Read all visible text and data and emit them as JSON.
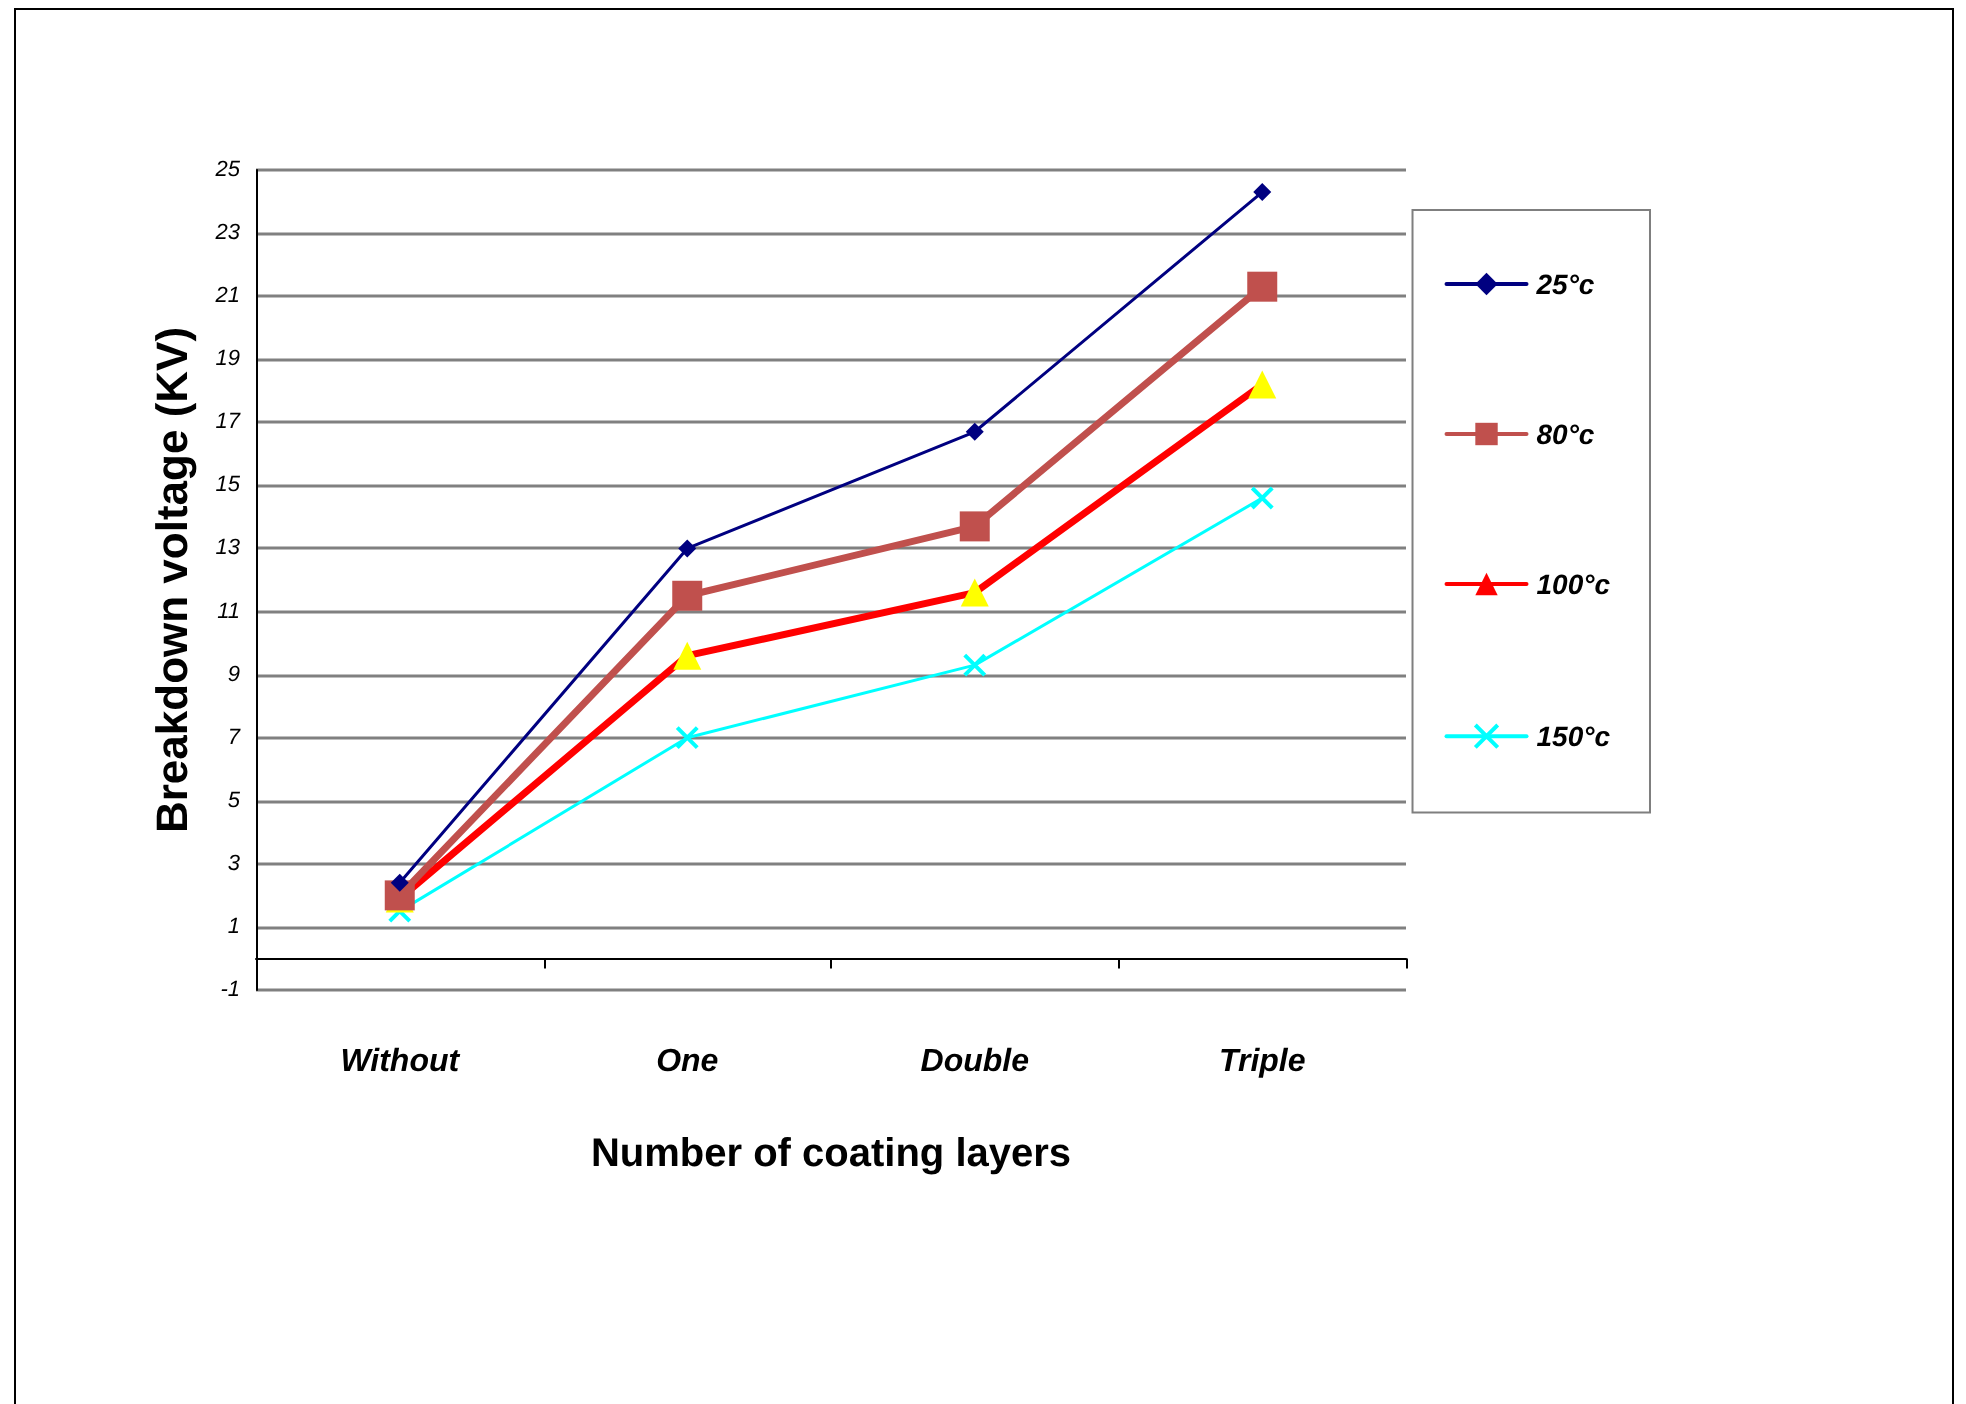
{
  "chart_data": {
    "type": "line",
    "xlabel": "Number of coating layers",
    "ylabel": "Breakdown voltage (KV)",
    "categories": [
      "Without",
      "One",
      "Double",
      "Triple"
    ],
    "series": [
      {
        "name": "25°c",
        "color": "#000080",
        "marker": "diamond",
        "values": [
          2.4,
          13,
          16.7,
          24.3
        ]
      },
      {
        "name": "80°c",
        "color": "#c0504d",
        "marker": "square",
        "values": [
          2.0,
          11.5,
          13.7,
          21.3
        ]
      },
      {
        "name": "100°c",
        "color": "#ff0000",
        "marker": "triangle",
        "colors": [
          "#ffff00",
          "#ffff00",
          "#ffff00",
          "#ffff00"
        ],
        "values": [
          1.9,
          9.6,
          11.6,
          18.2
        ]
      },
      {
        "name": "150°c",
        "color": "#00ffff",
        "marker": "cross",
        "values": [
          1.5,
          7.0,
          9.3,
          14.6
        ]
      }
    ],
    "ylim": [
      -1,
      25
    ],
    "yticks": [
      -1,
      1,
      3,
      5,
      7,
      9,
      11,
      13,
      15,
      17,
      19,
      21,
      23,
      25
    ],
    "grid": "y",
    "legend": "right",
    "line_style": "solid"
  }
}
